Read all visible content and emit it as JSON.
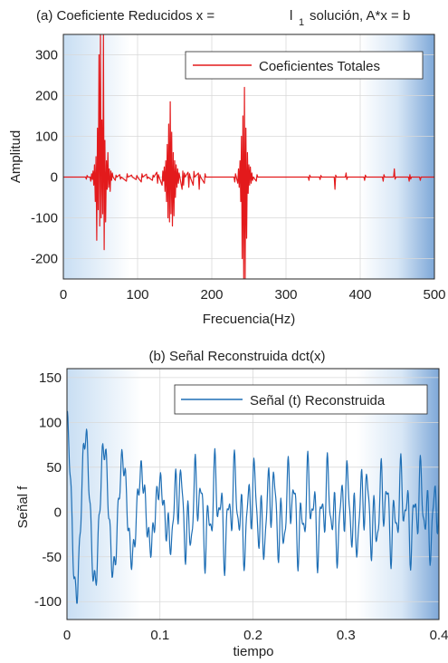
{
  "chart_data": [
    {
      "type": "line",
      "title_prefix": "(a) Coeficiente Reducidos x =",
      "title_l1": "l",
      "title_sub": "1",
      "title_suffix": "solución, A*x = b",
      "xlabel": "Frecuencia(Hz)",
      "ylabel": "Amplitud",
      "xlim": [
        0,
        500
      ],
      "ylim": [
        -250,
        350
      ],
      "xticks": [
        "0",
        "100",
        "200",
        "300",
        "400",
        "500"
      ],
      "yticks": [
        "-200",
        "-100",
        "0",
        "100",
        "200",
        "300"
      ],
      "grid": true,
      "legend_position": "top-right",
      "series": [
        {
          "name": "Coeficientes Totales",
          "color": "#e31a1c",
          "points": [
            [
              0,
              0
            ],
            [
              30,
              0
            ],
            [
              31,
              -5
            ],
            [
              32,
              4
            ],
            [
              33,
              0
            ],
            [
              36,
              0
            ],
            [
              37,
              -10
            ],
            [
              38,
              8
            ],
            [
              39,
              -6
            ],
            [
              40,
              15
            ],
            [
              41,
              -20
            ],
            [
              42,
              30
            ],
            [
              43,
              -60
            ],
            [
              44,
              50
            ],
            [
              45,
              -155
            ],
            [
              46,
              120
            ],
            [
              47,
              -80
            ],
            [
              48,
              300
            ],
            [
              49,
              -120
            ],
            [
              50,
              350
            ],
            [
              51,
              -100
            ],
            [
              52,
              140
            ],
            [
              53,
              -90
            ],
            [
              54,
              350
            ],
            [
              55,
              -178
            ],
            [
              56,
              90
            ],
            [
              57,
              -110
            ],
            [
              58,
              40
            ],
            [
              59,
              -30
            ],
            [
              60,
              60
            ],
            [
              61,
              -25
            ],
            [
              62,
              20
            ],
            [
              63,
              -35
            ],
            [
              64,
              15
            ],
            [
              65,
              -8
            ],
            [
              66,
              10
            ],
            [
              67,
              0
            ],
            [
              70,
              -8
            ],
            [
              71,
              5
            ],
            [
              72,
              0
            ],
            [
              76,
              6
            ],
            [
              77,
              -5
            ],
            [
              78,
              0
            ],
            [
              85,
              -10
            ],
            [
              86,
              8
            ],
            [
              87,
              0
            ],
            [
              92,
              5
            ],
            [
              93,
              0
            ],
            [
              98,
              -6
            ],
            [
              99,
              4
            ],
            [
              100,
              0
            ],
            [
              105,
              -12
            ],
            [
              106,
              8
            ],
            [
              107,
              0
            ],
            [
              112,
              7
            ],
            [
              113,
              -4
            ],
            [
              114,
              0
            ],
            [
              120,
              -8
            ],
            [
              121,
              5
            ],
            [
              122,
              0
            ],
            [
              126,
              12
            ],
            [
              127,
              -15
            ],
            [
              128,
              6
            ],
            [
              129,
              0
            ],
            [
              133,
              -20
            ],
            [
              134,
              15
            ],
            [
              135,
              -10
            ],
            [
              136,
              25
            ],
            [
              137,
              -35
            ],
            [
              138,
              40
            ],
            [
              139,
              -60
            ],
            [
              140,
              80
            ],
            [
              141,
              -100
            ],
            [
              142,
              130
            ],
            [
              143,
              -110
            ],
            [
              144,
              185
            ],
            [
              145,
              -90
            ],
            [
              146,
              110
            ],
            [
              147,
              -120
            ],
            [
              148,
              60
            ],
            [
              149,
              -95
            ],
            [
              150,
              40
            ],
            [
              151,
              -50
            ],
            [
              152,
              30
            ],
            [
              153,
              -25
            ],
            [
              154,
              20
            ],
            [
              155,
              -15
            ],
            [
              156,
              10
            ],
            [
              157,
              0
            ],
            [
              160,
              -30
            ],
            [
              161,
              15
            ],
            [
              162,
              -20
            ],
            [
              163,
              10
            ],
            [
              164,
              0
            ],
            [
              168,
              12
            ],
            [
              169,
              -25
            ],
            [
              170,
              8
            ],
            [
              171,
              0
            ],
            [
              175,
              -20
            ],
            [
              176,
              14
            ],
            [
              177,
              0
            ],
            [
              182,
              10
            ],
            [
              183,
              -30
            ],
            [
              184,
              6
            ],
            [
              185,
              0
            ],
            [
              190,
              -15
            ],
            [
              191,
              8
            ],
            [
              192,
              0
            ],
            [
              200,
              0
            ],
            [
              230,
              0
            ],
            [
              231,
              -12
            ],
            [
              232,
              8
            ],
            [
              233,
              0
            ],
            [
              235,
              -15
            ],
            [
              236,
              20
            ],
            [
              237,
              -25
            ],
            [
              238,
              40
            ],
            [
              239,
              -60
            ],
            [
              240,
              100
            ],
            [
              241,
              -200
            ],
            [
              242,
              150
            ],
            [
              243,
              -250
            ],
            [
              244,
              220
            ],
            [
              245,
              -250
            ],
            [
              246,
              120
            ],
            [
              247,
              -150
            ],
            [
              248,
              60
            ],
            [
              249,
              -40
            ],
            [
              250,
              30
            ],
            [
              251,
              -20
            ],
            [
              252,
              25
            ],
            [
              253,
              -15
            ],
            [
              254,
              10
            ],
            [
              255,
              -8
            ],
            [
              256,
              0
            ],
            [
              260,
              -10
            ],
            [
              261,
              6
            ],
            [
              262,
              0
            ],
            [
              270,
              0
            ],
            [
              330,
              0
            ],
            [
              331,
              -8
            ],
            [
              332,
              5
            ],
            [
              333,
              0
            ],
            [
              345,
              0
            ],
            [
              346,
              -6
            ],
            [
              347,
              4
            ],
            [
              348,
              0
            ],
            [
              365,
              0
            ],
            [
              366,
              -30
            ],
            [
              367,
              5
            ],
            [
              368,
              0
            ],
            [
              380,
              0
            ],
            [
              381,
              10
            ],
            [
              382,
              -6
            ],
            [
              383,
              0
            ],
            [
              405,
              0
            ],
            [
              406,
              -8
            ],
            [
              407,
              5
            ],
            [
              408,
              0
            ],
            [
              430,
              0
            ],
            [
              431,
              -10
            ],
            [
              432,
              6
            ],
            [
              433,
              0
            ],
            [
              445,
              0
            ],
            [
              446,
              20
            ],
            [
              447,
              -5
            ],
            [
              448,
              0
            ],
            [
              465,
              0
            ],
            [
              466,
              -10
            ],
            [
              467,
              6
            ],
            [
              468,
              -5
            ],
            [
              469,
              0
            ],
            [
              480,
              0
            ],
            [
              481,
              -8
            ],
            [
              482,
              0
            ],
            [
              500,
              0
            ]
          ]
        }
      ]
    },
    {
      "type": "line",
      "title": "(b)  Señal Reconstruida dct(x)",
      "xlabel": "tiempo",
      "ylabel": "Señal f",
      "xlim": [
        0,
        0.4
      ],
      "ylim": [
        -120,
        160
      ],
      "xticks": [
        "0",
        "0.1",
        "0.2",
        "0.3",
        "0.4"
      ],
      "yticks": [
        "-100",
        "-50",
        "0",
        "50",
        "100",
        "150"
      ],
      "grid": true,
      "legend_position": "top-right",
      "series": [
        {
          "name": "Señal (t) Reconstruida",
          "color": "#1f6fb5",
          "sample_count": 800,
          "components": [
            {
              "freq_hz": 50,
              "amp_start": 100,
              "amp_end": 30,
              "decay_end_t": 0.1
            },
            {
              "freq_hz": 140,
              "amp_start": 0,
              "amp_end": 30,
              "start_t": 0.1
            },
            {
              "freq_hz": 240,
              "amp": 14
            }
          ]
        }
      ]
    }
  ]
}
